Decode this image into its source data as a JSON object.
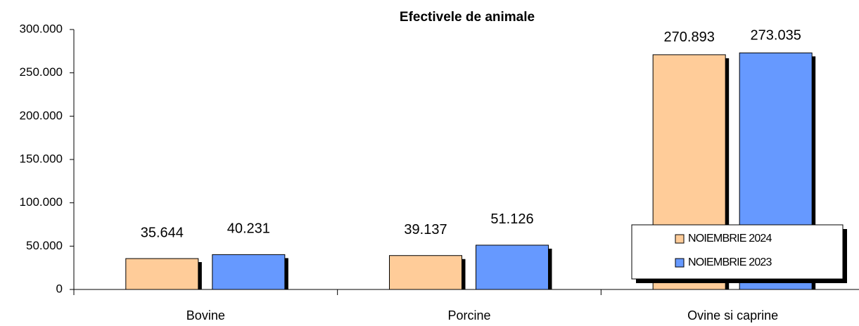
{
  "chart_data": {
    "type": "bar",
    "title": "Efectivele de animale",
    "categories": [
      "Bovine",
      "Porcine",
      "Ovine si caprine"
    ],
    "series": [
      {
        "name": "NOIEMBRIE 2024",
        "color": "#ffcc99",
        "values": [
          35644,
          39137,
          270893
        ],
        "value_labels": [
          "35.644",
          "39.137",
          "270.893"
        ]
      },
      {
        "name": "NOIEMBRIE 2023",
        "color": "#6699ff",
        "values": [
          40231,
          51126,
          273035
        ],
        "value_labels": [
          "40.231",
          "51.126",
          "273.035"
        ]
      }
    ],
    "ylim": [
      0,
      300000
    ],
    "yticks": [
      0,
      {
        "value": 50000,
        "label": "50.000"
      },
      {
        "value": 100000,
        "label": "100.000"
      },
      {
        "value": 150000,
        "label": "150.000"
      },
      {
        "value": 200000,
        "label": "200.000"
      },
      {
        "value": 250000,
        "label": "250.000"
      },
      {
        "value": 300000,
        "label": "300.000"
      }
    ],
    "legend": "lower-right"
  }
}
